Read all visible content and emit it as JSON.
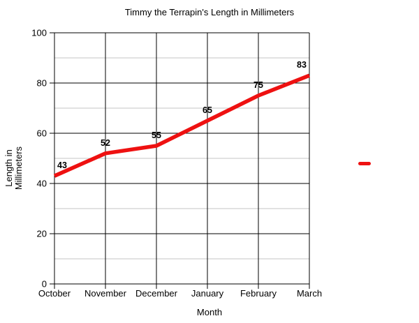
{
  "chart_data": {
    "type": "line",
    "title": "Timmy the Terrapin's Length in Millimeters",
    "xlabel": "Month",
    "ylabel": "Length in Millimeters",
    "ylabel_lines": [
      "Length in",
      "Millimeters"
    ],
    "categories": [
      "October",
      "November",
      "December",
      "January",
      "February",
      "March"
    ],
    "series": [
      {
        "name": "",
        "color": "#ee1111",
        "values": [
          43,
          52,
          55,
          65,
          75,
          83
        ]
      }
    ],
    "ylim": [
      0,
      100
    ],
    "y_major_ticks": [
      0,
      20,
      40,
      60,
      80,
      100
    ],
    "y_minor_step": 10,
    "grid": {
      "major_color": "#000000",
      "minor_color": "#c4c4c4",
      "vertical_gridlines": true
    },
    "legend": {
      "position": "right",
      "marker": "red-dash",
      "label": ""
    }
  }
}
